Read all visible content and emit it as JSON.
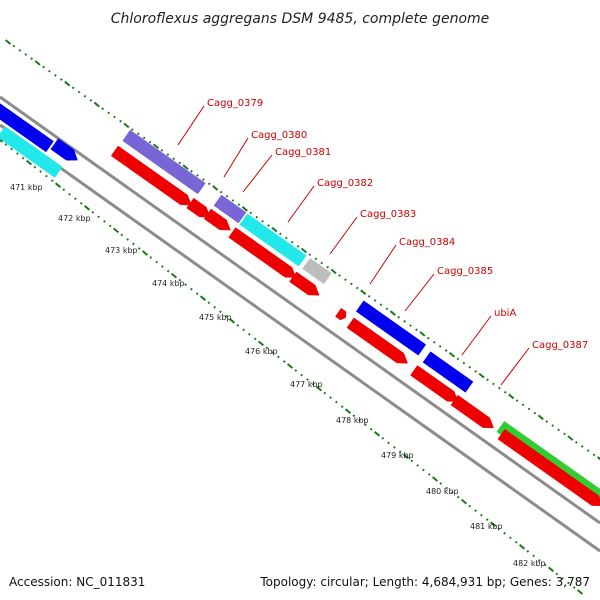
{
  "title": "Chloroflexus aggregans DSM 9485, complete genome",
  "accession_text": "Accession: NC_011831",
  "summary_text": "Topology: circular; Length: 4,684,931 bp; Genes: 3,787",
  "colors": {
    "backbone": "#8c8c8c",
    "tick": "#1a7a1a",
    "label": "#cc0000",
    "blue": "#0000ee",
    "purple": "#7a65d6",
    "cyan": "#22e8ea",
    "grey": "#bdbdbd",
    "red": "#ee0000",
    "green": "#33cc33"
  },
  "scale_ticks": [
    "471 kbp",
    "472 kbp",
    "473 kbp",
    "474 kbp",
    "475 kbp",
    "476 kbp",
    "477 kbp",
    "478 kbp",
    "479 kbp",
    "480 kbp",
    "481 kbp",
    "482 kbp"
  ],
  "gene_labels": [
    "Cagg_0379",
    "Cagg_0380",
    "Cagg_0381",
    "Cagg_0382",
    "Cagg_0383",
    "Cagg_0384",
    "Cagg_0385",
    "ubiA",
    "Cagg_0387"
  ]
}
